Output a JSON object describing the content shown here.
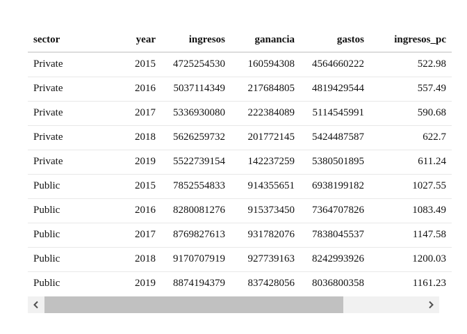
{
  "table": {
    "columns": [
      {
        "key": "sector",
        "label": "sector",
        "align": "left"
      },
      {
        "key": "year",
        "label": "year",
        "align": "right"
      },
      {
        "key": "ingresos",
        "label": "ingresos",
        "align": "right"
      },
      {
        "key": "ganancia",
        "label": "ganancia",
        "align": "right"
      },
      {
        "key": "gastos",
        "label": "gastos",
        "align": "right"
      },
      {
        "key": "ingresos_pc",
        "label": "ingresos_pc",
        "align": "right"
      }
    ],
    "rows": [
      [
        "Private",
        "2015",
        "4725254530",
        "160594308",
        "4564660222",
        "522.98"
      ],
      [
        "Private",
        "2016",
        "5037114349",
        "217684805",
        "4819429544",
        "557.49"
      ],
      [
        "Private",
        "2017",
        "5336930080",
        "222384089",
        "5114545991",
        "590.68"
      ],
      [
        "Private",
        "2018",
        "5626259732",
        "201772145",
        "5424487587",
        "622.7"
      ],
      [
        "Private",
        "2019",
        "5522739154",
        "142237259",
        "5380501895",
        "611.24"
      ],
      [
        "Public",
        "2015",
        "7852554833",
        "914355651",
        "6938199182",
        "1027.55"
      ],
      [
        "Public",
        "2016",
        "8280081276",
        "915373450",
        "7364707826",
        "1083.49"
      ],
      [
        "Public",
        "2017",
        "8769827613",
        "931782076",
        "7838045537",
        "1147.58"
      ],
      [
        "Public",
        "2018",
        "9170707919",
        "927739163",
        "8242993926",
        "1200.03"
      ],
      [
        "Public",
        "2019",
        "8874194379",
        "837428056",
        "8036800358",
        "1161.23"
      ]
    ]
  },
  "scrollbar": {
    "left_icon": "chevron-left-icon",
    "right_icon": "chevron-right-icon",
    "thumb_color": "#c1c1c1",
    "track_color": "#f1f1f1",
    "scroll_position_fraction": 0.0,
    "visible_fraction": 0.79
  }
}
